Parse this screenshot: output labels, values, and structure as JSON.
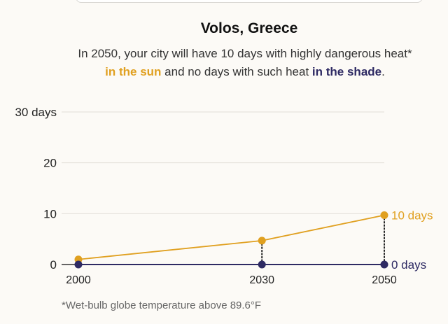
{
  "header": {
    "title": "Volos, Greece",
    "subtitle_pre": "In 2050, your city will have 10 days with highly dangerous heat*",
    "subtitle_sun": "in the sun",
    "subtitle_mid": " and no days with such heat ",
    "subtitle_shade": "in the shade",
    "subtitle_end": "."
  },
  "footnote": "*Wet-bulb globe temperature above 89.6°F",
  "colors": {
    "sun": "#e0a020",
    "shade": "#2e2a63",
    "grid": "#e2dfd8",
    "axis": "#333333"
  },
  "chart_data": {
    "type": "line",
    "title": "Volos, Greece",
    "x": [
      2000,
      2030,
      2050
    ],
    "xlim": [
      2000,
      2050
    ],
    "ylim": [
      0,
      30
    ],
    "yticks": [
      0,
      10,
      20,
      30
    ],
    "ytick_labels": [
      "0",
      "10",
      "20",
      "30 days"
    ],
    "xtick_labels": [
      "2000",
      "2030",
      "2050"
    ],
    "grid": true,
    "series": [
      {
        "name": "in the sun",
        "color": "#e0a020",
        "values": [
          1,
          4.7,
          9.7
        ],
        "end_label": "10 days"
      },
      {
        "name": "in the shade",
        "color": "#2e2a63",
        "values": [
          0,
          0,
          0
        ],
        "end_label": "0 days"
      }
    ]
  }
}
